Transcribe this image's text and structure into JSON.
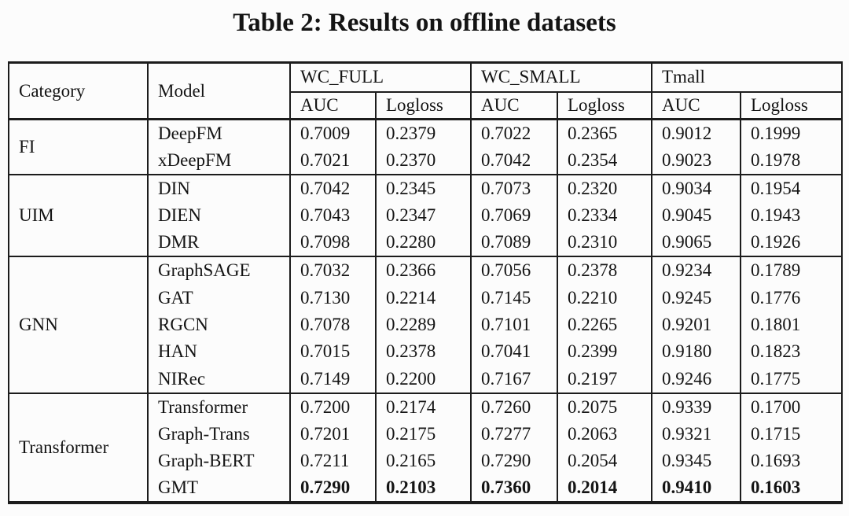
{
  "title": "Table 2: Results on offline datasets",
  "table": {
    "col_headers": {
      "category": "Category",
      "model": "Model",
      "groups": [
        {
          "label": "WC_FULL",
          "sub": [
            "AUC",
            "Logloss"
          ]
        },
        {
          "label": "WC_SMALL",
          "sub": [
            "AUC",
            "Logloss"
          ]
        },
        {
          "label": "Tmall",
          "sub": [
            "AUC",
            "Logloss"
          ]
        }
      ]
    },
    "groups": [
      {
        "category": "FI",
        "rows": [
          {
            "model": "DeepFM",
            "values": [
              "0.7009",
              "0.2379",
              "0.7022",
              "0.2365",
              "0.9012",
              "0.1999"
            ],
            "bold": false
          },
          {
            "model": "xDeepFM",
            "values": [
              "0.7021",
              "0.2370",
              "0.7042",
              "0.2354",
              "0.9023",
              "0.1978"
            ],
            "bold": false
          }
        ]
      },
      {
        "category": "UIM",
        "rows": [
          {
            "model": "DIN",
            "values": [
              "0.7042",
              "0.2345",
              "0.7073",
              "0.2320",
              "0.9034",
              "0.1954"
            ],
            "bold": false
          },
          {
            "model": "DIEN",
            "values": [
              "0.7043",
              "0.2347",
              "0.7069",
              "0.2334",
              "0.9045",
              "0.1943"
            ],
            "bold": false
          },
          {
            "model": "DMR",
            "values": [
              "0.7098",
              "0.2280",
              "0.7089",
              "0.2310",
              "0.9065",
              "0.1926"
            ],
            "bold": false
          }
        ]
      },
      {
        "category": "GNN",
        "rows": [
          {
            "model": "GraphSAGE",
            "values": [
              "0.7032",
              "0.2366",
              "0.7056",
              "0.2378",
              "0.9234",
              "0.1789"
            ],
            "bold": false
          },
          {
            "model": "GAT",
            "values": [
              "0.7130",
              "0.2214",
              "0.7145",
              "0.2210",
              "0.9245",
              "0.1776"
            ],
            "bold": false
          },
          {
            "model": "RGCN",
            "values": [
              "0.7078",
              "0.2289",
              "0.7101",
              "0.2265",
              "0.9201",
              "0.1801"
            ],
            "bold": false
          },
          {
            "model": "HAN",
            "values": [
              "0.7015",
              "0.2378",
              "0.7041",
              "0.2399",
              "0.9180",
              "0.1823"
            ],
            "bold": false
          },
          {
            "model": "NIRec",
            "values": [
              "0.7149",
              "0.2200",
              "0.7167",
              "0.2197",
              "0.9246",
              "0.1775"
            ],
            "bold": false
          }
        ]
      },
      {
        "category": "Transformer",
        "rows": [
          {
            "model": "Transformer",
            "values": [
              "0.7200",
              "0.2174",
              "0.7260",
              "0.2075",
              "0.9339",
              "0.1700"
            ],
            "bold": false
          },
          {
            "model": "Graph-Trans",
            "values": [
              "0.7201",
              "0.2175",
              "0.7277",
              "0.2063",
              "0.9321",
              "0.1715"
            ],
            "bold": false
          },
          {
            "model": "Graph-BERT",
            "values": [
              "0.7211",
              "0.2165",
              "0.7290",
              "0.2054",
              "0.9345",
              "0.1693"
            ],
            "bold": false
          },
          {
            "model": "GMT",
            "values": [
              "0.7290",
              "0.2103",
              "0.7360",
              "0.2014",
              "0.9410",
              "0.1603"
            ],
            "bold": true
          }
        ]
      }
    ]
  },
  "colors": {
    "background": "#fcfcfc",
    "text": "#141414",
    "border": "#1c1c1c"
  }
}
